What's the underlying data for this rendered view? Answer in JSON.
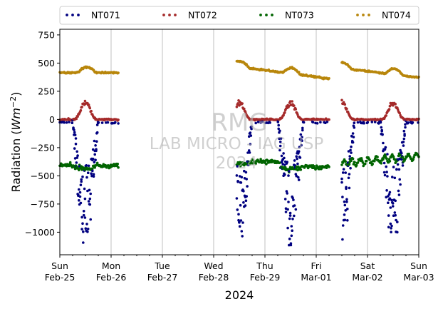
{
  "chart_data": {
    "type": "scatter",
    "ylabel_text": "Radiation (",
    "ylabel_unit_base": "Wm",
    "ylabel_unit_exp": "−2",
    "ylabel_close": ")",
    "xlabel": "2024",
    "ylim": [
      -1200,
      800
    ],
    "yticks": [
      750,
      500,
      250,
      0,
      -250,
      -500,
      -750,
      -1000
    ],
    "ytick_labels": [
      "750",
      "500",
      "250",
      "0",
      "−250",
      "−500",
      "−750",
      "−1000"
    ],
    "xlim": [
      "2024-02-25T00:00",
      "2024-03-03T00:00"
    ],
    "xticks": [
      {
        "day": 0,
        "line1": "Sun",
        "line2": "Feb-25"
      },
      {
        "day": 1,
        "line1": "Mon",
        "line2": "Feb-26"
      },
      {
        "day": 2,
        "line1": "Tue",
        "line2": "Feb-27"
      },
      {
        "day": 3,
        "line1": "Wed",
        "line2": "Feb-28"
      },
      {
        "day": 4,
        "line1": "Thu",
        "line2": "Feb-29"
      },
      {
        "day": 5,
        "line1": "Fri",
        "line2": "Mar-01"
      },
      {
        "day": 6,
        "line1": "Sat",
        "line2": "Mar-02"
      },
      {
        "day": 7,
        "line1": "Sun",
        "line2": "Mar-03"
      }
    ],
    "grid_x": true,
    "legend_position": "top",
    "series": [
      {
        "name": "NT071",
        "color": "#000080"
      },
      {
        "name": "NT072",
        "color": "#a52a2a"
      },
      {
        "name": "NT073",
        "color": "#006400"
      },
      {
        "name": "NT074",
        "color": "#b8860b"
      }
    ],
    "segments": [
      {
        "start": 0.0,
        "end": 1.15
      },
      {
        "start": 3.45,
        "end": 5.25
      },
      {
        "start": 5.5,
        "end": 7.0
      }
    ],
    "watermark": {
      "line1": "RMG",
      "line2": "LAB MICRO - IAG USP",
      "line3": "2024"
    }
  }
}
